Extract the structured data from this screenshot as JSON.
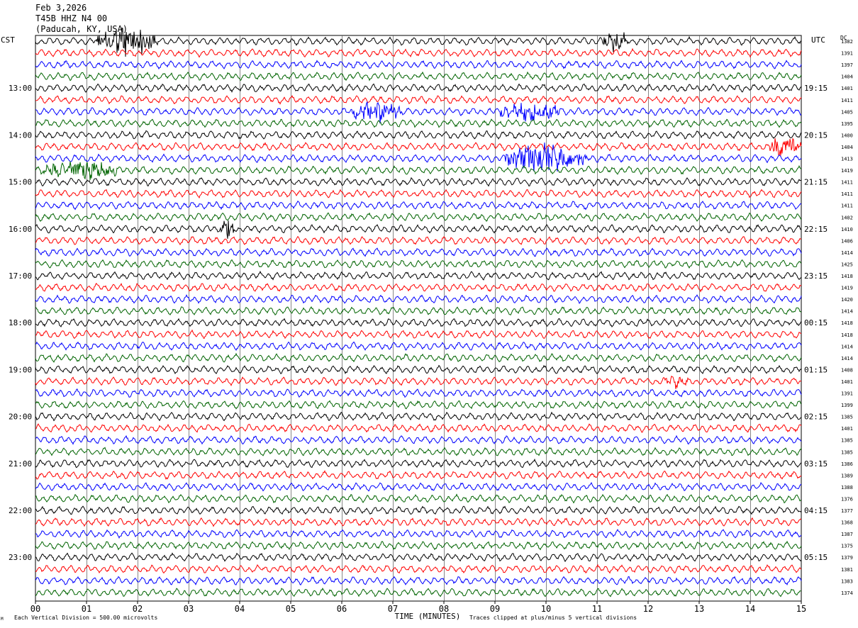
{
  "header": {
    "date": "Feb 3,2026",
    "station": "T45B HHZ N4 00",
    "location": "(Paducah, KY, USA)"
  },
  "left_tz": "CST",
  "right_tz": "UTC",
  "dc_label": "DC",
  "footer": {
    "scale_note": "Each Vertical Division =  500.00 microvolts",
    "clip_note": "Traces clipped at plus/minus 5 vertical divisions",
    "mark": "M"
  },
  "chart_data": {
    "type": "line",
    "title": "Feb 3,2026 T45B HHZ N4 00 (Paducah, KY, USA)",
    "xlabel": "TIME (MINUTES)",
    "x_ticks": [
      "00",
      "01",
      "02",
      "03",
      "04",
      "05",
      "06",
      "07",
      "08",
      "09",
      "10",
      "11",
      "12",
      "13",
      "14",
      "15"
    ],
    "xlim": [
      0,
      15
    ],
    "trace_minutes": 15,
    "trace_colors": [
      "#000000",
      "#ff0000",
      "#0000ff",
      "#006400"
    ],
    "left_hour_labels": [
      "13:00",
      "14:00",
      "15:00",
      "16:00",
      "17:00",
      "18:00",
      "19:00",
      "20:00",
      "21:00",
      "22:00",
      "23:00"
    ],
    "right_hour_labels": [
      "19:15",
      "20:15",
      "21:15",
      "22:15",
      "23:15",
      "00:15",
      "01:15",
      "02:15",
      "03:15",
      "04:15",
      "05:15"
    ],
    "dc_offsets": [
      1382,
      1391,
      1397,
      1404,
      1401,
      1411,
      1405,
      1395,
      1400,
      1404,
      1413,
      1419,
      1411,
      1411,
      1411,
      1402,
      1410,
      1406,
      1414,
      1425,
      1418,
      1419,
      1420,
      1414,
      1418,
      1418,
      1414,
      1414,
      1408,
      1401,
      1391,
      1399,
      1385,
      1401,
      1385,
      1385,
      1386,
      1389,
      1388,
      1376,
      1377,
      1368,
      1387,
      1375,
      1379,
      1381,
      1383,
      1374
    ],
    "events": [
      {
        "trace": 0,
        "minute_start": 1.2,
        "minute_end": 2.4,
        "amplitude": "high"
      },
      {
        "trace": 0,
        "minute_start": 11.1,
        "minute_end": 11.6,
        "amplitude": "medium"
      },
      {
        "trace": 6,
        "minute_start": 6.2,
        "minute_end": 7.2,
        "amplitude": "medium"
      },
      {
        "trace": 6,
        "minute_start": 9.1,
        "minute_end": 10.3,
        "amplitude": "medium"
      },
      {
        "trace": 9,
        "minute_start": 14.3,
        "minute_end": 15.0,
        "amplitude": "medium"
      },
      {
        "trace": 10,
        "minute_start": 9.2,
        "minute_end": 10.8,
        "amplitude": "high"
      },
      {
        "trace": 11,
        "minute_start": 0.1,
        "minute_end": 1.6,
        "amplitude": "medium"
      },
      {
        "trace": 16,
        "minute_start": 3.6,
        "minute_end": 3.9,
        "amplitude": "medium"
      },
      {
        "trace": 29,
        "minute_start": 12.3,
        "minute_end": 12.8,
        "amplitude": "low"
      }
    ]
  }
}
